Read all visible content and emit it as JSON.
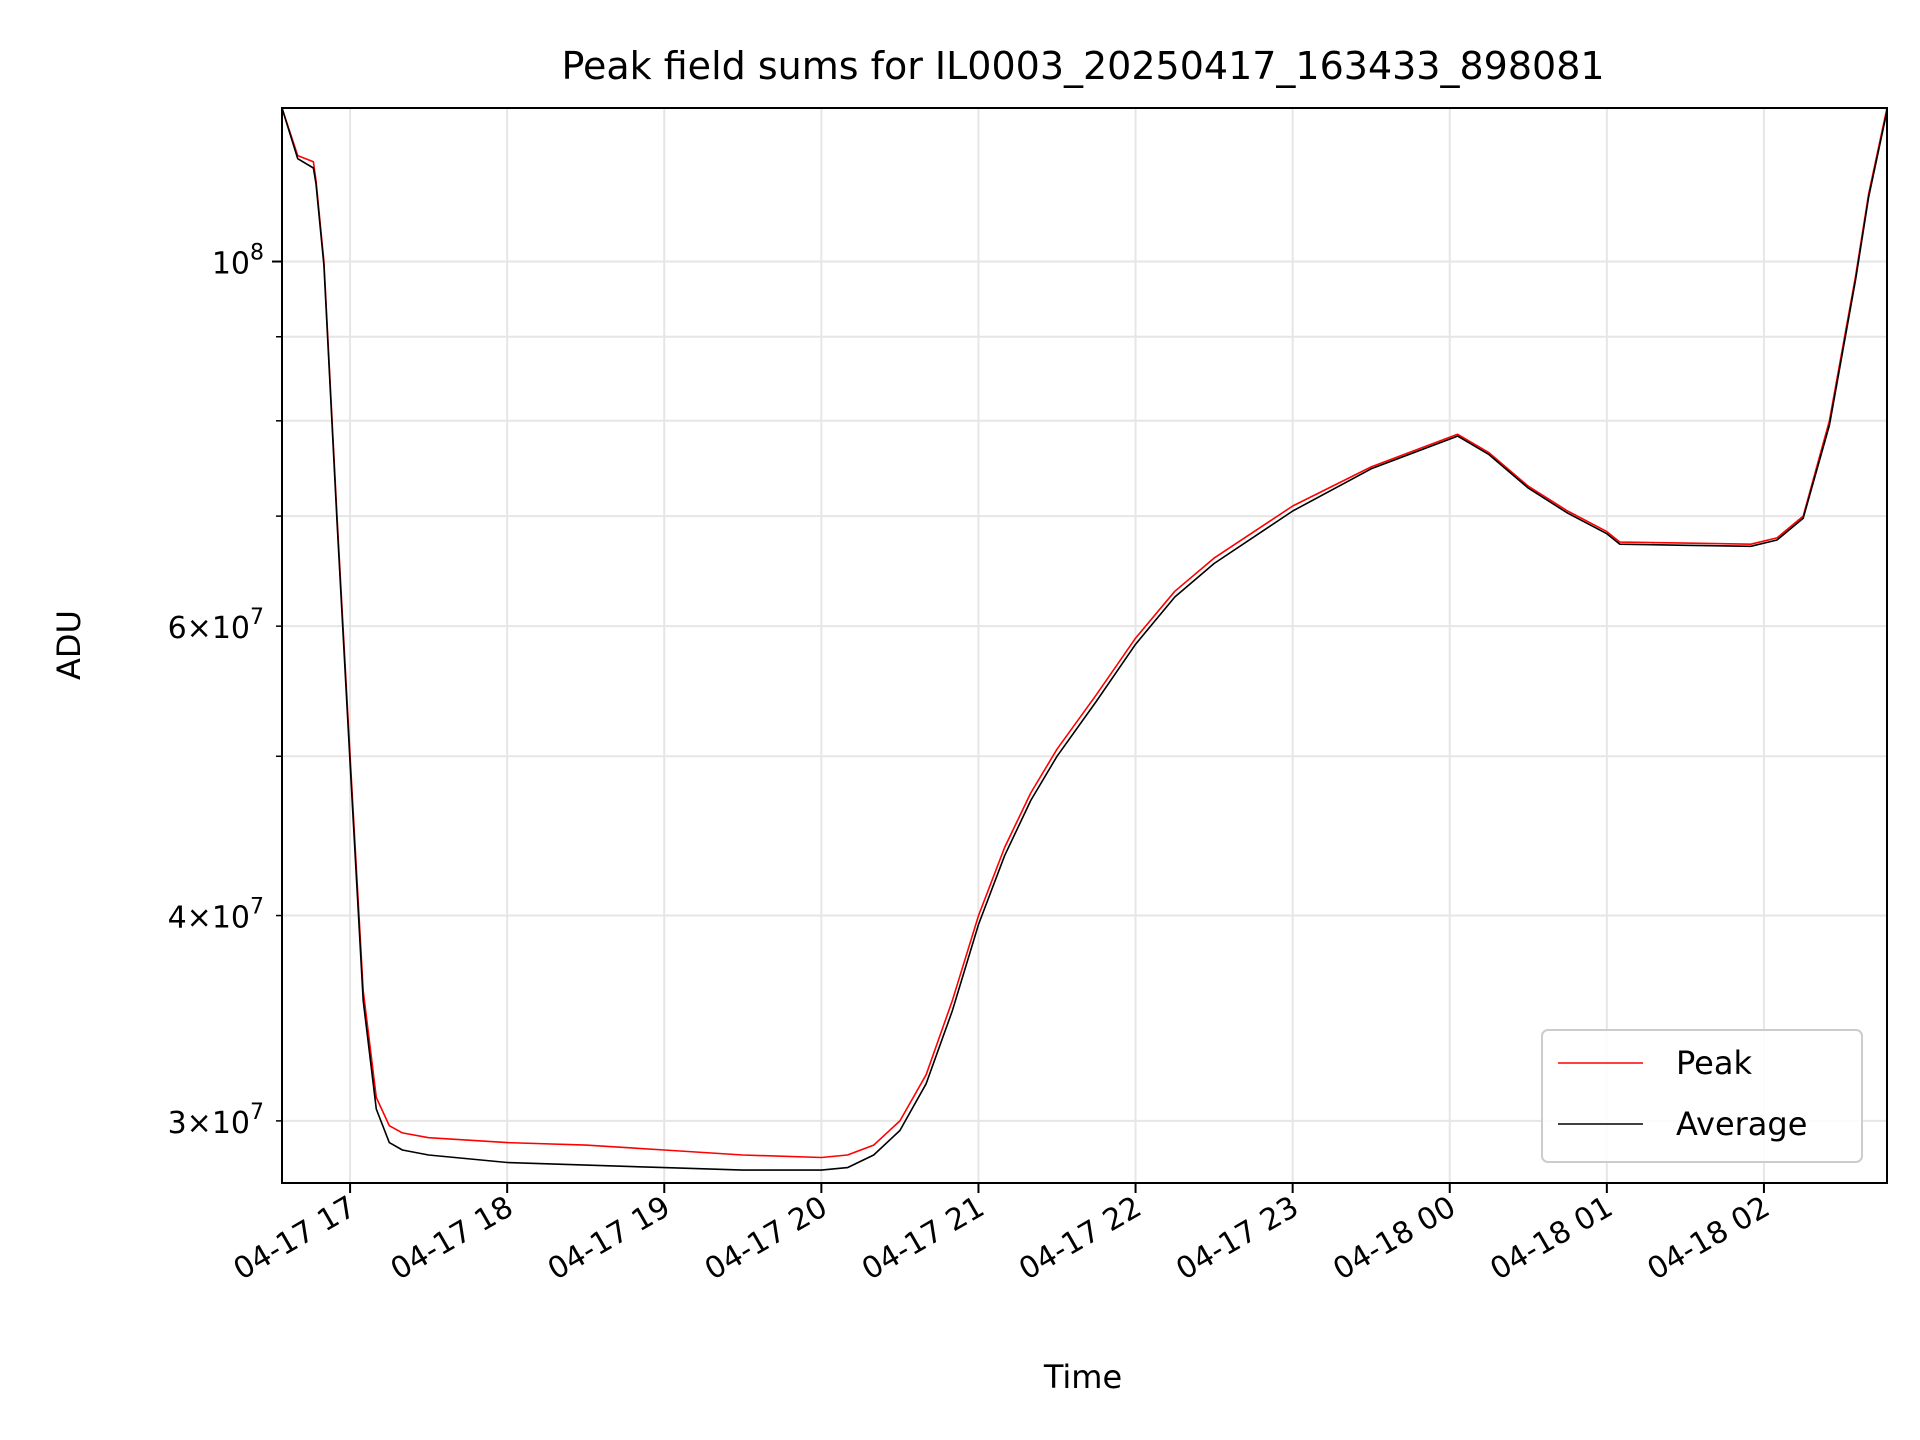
{
  "chart_data": {
    "type": "line",
    "title": "Peak field sums for IL0003_20250417_163433_898081",
    "xlabel": "Time",
    "ylabel": "ADU",
    "y_scale": "log",
    "grid": true,
    "legend_position": "lower-right",
    "xlim": [
      "2025-04-17 16:34",
      "2025-04-18 02:47"
    ],
    "ylim": [
      27500000,
      124000000
    ],
    "x_ticks": [
      "2025-04-17 17:00",
      "2025-04-17 18:00",
      "2025-04-17 19:00",
      "2025-04-17 20:00",
      "2025-04-17 21:00",
      "2025-04-17 22:00",
      "2025-04-17 23:00",
      "2025-04-18 00:00",
      "2025-04-18 01:00",
      "2025-04-18 02:00"
    ],
    "x_tick_labels": [
      "04-17 17",
      "04-17 18",
      "04-17 19",
      "04-17 20",
      "04-17 21",
      "04-17 22",
      "04-17 23",
      "04-18 00",
      "04-18 01",
      "04-18 02"
    ],
    "y_major_ticks": [
      {
        "value": 100000000,
        "base": "10",
        "exp": "8"
      }
    ],
    "y_minor_ticks": [
      {
        "value": 30000000,
        "coef": "3",
        "exp": "7"
      },
      {
        "value": 40000000,
        "coef": "4",
        "exp": "7"
      },
      {
        "value": 60000000,
        "coef": "6",
        "exp": "7"
      },
      {
        "value": 50000000,
        "coef": "",
        "exp": ""
      },
      {
        "value": 70000000,
        "coef": "",
        "exp": ""
      },
      {
        "value": 80000000,
        "coef": "",
        "exp": ""
      },
      {
        "value": 90000000,
        "coef": "",
        "exp": ""
      }
    ],
    "series": [
      {
        "name": "Peak",
        "color": "#ff0000",
        "x": [
          "2025-04-17 16:34",
          "2025-04-17 16:40",
          "2025-04-17 16:46",
          "2025-04-17 16:47",
          "2025-04-17 16:50",
          "2025-04-17 16:55",
          "2025-04-17 17:00",
          "2025-04-17 17:05",
          "2025-04-17 17:10",
          "2025-04-17 17:15",
          "2025-04-17 17:20",
          "2025-04-17 17:30",
          "2025-04-17 18:00",
          "2025-04-17 18:30",
          "2025-04-17 19:00",
          "2025-04-17 19:30",
          "2025-04-17 20:00",
          "2025-04-17 20:10",
          "2025-04-17 20:20",
          "2025-04-17 20:30",
          "2025-04-17 20:40",
          "2025-04-17 20:50",
          "2025-04-17 21:00",
          "2025-04-17 21:10",
          "2025-04-17 21:20",
          "2025-04-17 21:30",
          "2025-04-17 21:45",
          "2025-04-17 22:00",
          "2025-04-17 22:15",
          "2025-04-17 22:30",
          "2025-04-17 23:00",
          "2025-04-17 23:30",
          "2025-04-18 00:03",
          "2025-04-18 00:15",
          "2025-04-18 00:30",
          "2025-04-18 00:45",
          "2025-04-18 01:00",
          "2025-04-18 01:05",
          "2025-04-18 01:30",
          "2025-04-18 01:55",
          "2025-04-18 02:05",
          "2025-04-18 02:15",
          "2025-04-18 02:25",
          "2025-04-18 02:35",
          "2025-04-18 02:40",
          "2025-04-18 02:47"
        ],
        "y": [
          124000000,
          116000000,
          115000000,
          112000000,
          100000000,
          70000000,
          50000000,
          36000000,
          31000000,
          29800000,
          29500000,
          29300000,
          29100000,
          29000000,
          28800000,
          28600000,
          28500000,
          28600000,
          29000000,
          30000000,
          32000000,
          35500000,
          40000000,
          44000000,
          47500000,
          50500000,
          54500000,
          59000000,
          63000000,
          66000000,
          71000000,
          75000000,
          78500000,
          76500000,
          73000000,
          70500000,
          68500000,
          67500000,
          67400000,
          67300000,
          67900000,
          70000000,
          80000000,
          98000000,
          110000000,
          124000000
        ]
      },
      {
        "name": "Average",
        "color": "#000000",
        "x": [
          "2025-04-17 16:34",
          "2025-04-17 16:40",
          "2025-04-17 16:46",
          "2025-04-17 16:47",
          "2025-04-17 16:50",
          "2025-04-17 16:55",
          "2025-04-17 17:00",
          "2025-04-17 17:05",
          "2025-04-17 17:10",
          "2025-04-17 17:15",
          "2025-04-17 17:20",
          "2025-04-17 17:30",
          "2025-04-17 18:00",
          "2025-04-17 18:30",
          "2025-04-17 19:00",
          "2025-04-17 19:30",
          "2025-04-17 20:00",
          "2025-04-17 20:10",
          "2025-04-17 20:20",
          "2025-04-17 20:30",
          "2025-04-17 20:40",
          "2025-04-17 20:50",
          "2025-04-17 21:00",
          "2025-04-17 21:10",
          "2025-04-17 21:20",
          "2025-04-17 21:30",
          "2025-04-17 21:45",
          "2025-04-17 22:00",
          "2025-04-17 22:15",
          "2025-04-17 22:30",
          "2025-04-17 23:00",
          "2025-04-17 23:30",
          "2025-04-18 00:03",
          "2025-04-18 00:15",
          "2025-04-18 00:30",
          "2025-04-18 00:45",
          "2025-04-18 01:00",
          "2025-04-18 01:05",
          "2025-04-18 01:30",
          "2025-04-18 01:55",
          "2025-04-18 02:05",
          "2025-04-18 02:15",
          "2025-04-18 02:25",
          "2025-04-18 02:35",
          "2025-04-18 02:40",
          "2025-04-18 02:47"
        ],
        "y": [
          124000000,
          115500000,
          114000000,
          111500000,
          99500000,
          69500000,
          49500000,
          35500000,
          30500000,
          29100000,
          28800000,
          28600000,
          28300000,
          28200000,
          28100000,
          28000000,
          28000000,
          28100000,
          28600000,
          29600000,
          31600000,
          35000000,
          39500000,
          43500000,
          47000000,
          50000000,
          54000000,
          58500000,
          62500000,
          65500000,
          70500000,
          74800000,
          78300000,
          76300000,
          72800000,
          70300000,
          68300000,
          67300000,
          67200000,
          67100000,
          67700000,
          69800000,
          79500000,
          97500000,
          109500000,
          123500000
        ]
      }
    ]
  }
}
